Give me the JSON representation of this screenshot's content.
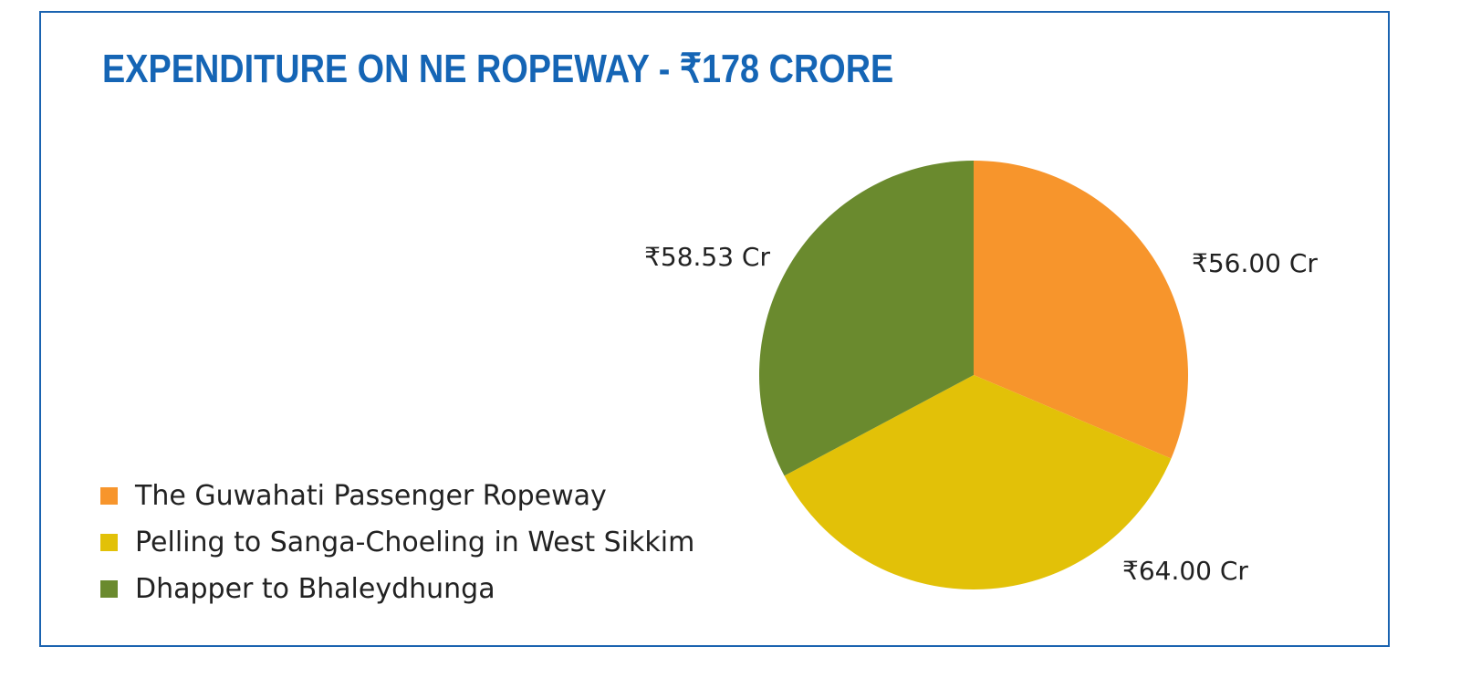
{
  "chart_data": {
    "type": "pie",
    "title": "EXPENDITURE ON NE ROPEWAY -  ₹178 CRORE",
    "legend_position": "bottom-left",
    "slices": [
      {
        "name": "The Guwahati Passenger Ropeway",
        "value": 56.0,
        "label": "₹56.00 Cr",
        "color": "#f7952c"
      },
      {
        "name": "Pelling to Sanga-Choeling in West Sikkim",
        "value": 64.0,
        "label": "₹64.00 Cr",
        "color": "#e2c108"
      },
      {
        "name": "Dhapper to Bhaleydhunga",
        "value": 58.53,
        "label": "₹58.53 Cr",
        "color": "#6a8a2e"
      }
    ]
  },
  "colors": {
    "border": "#1a63b0",
    "title": "#1565b5"
  }
}
